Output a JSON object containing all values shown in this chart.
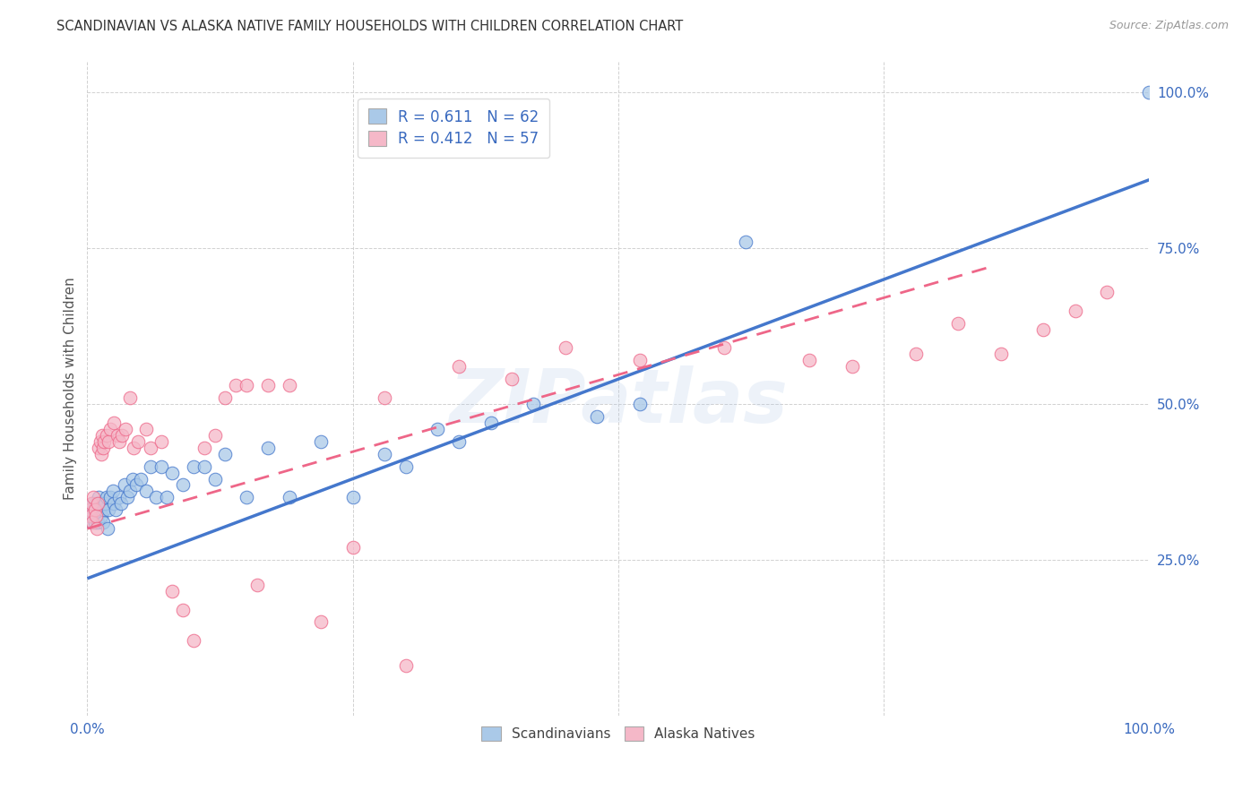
{
  "title": "SCANDINAVIAN VS ALASKA NATIVE FAMILY HOUSEHOLDS WITH CHILDREN CORRELATION CHART",
  "source": "Source: ZipAtlas.com",
  "ylabel": "Family Households with Children",
  "xlim": [
    0,
    1.0
  ],
  "ylim": [
    0,
    1.05
  ],
  "xtick_positions": [
    0.0,
    0.25,
    0.5,
    0.75,
    1.0
  ],
  "xtick_labels": [
    "0.0%",
    "",
    "",
    "",
    "100.0%"
  ],
  "ytick_positions": [
    0.25,
    0.5,
    0.75,
    1.0
  ],
  "ytick_labels": [
    "25.0%",
    "50.0%",
    "75.0%",
    "100.0%"
  ],
  "scandinavian_color": "#aac9e8",
  "alaska_color": "#f5b8c8",
  "line_blue": "#4477cc",
  "line_pink": "#ee6688",
  "watermark": "ZIPatlas",
  "R_scand": "0.611",
  "N_scand": "62",
  "R_alaska": "0.412",
  "N_alaska": "57",
  "scand_x": [
    0.002,
    0.003,
    0.004,
    0.005,
    0.005,
    0.006,
    0.007,
    0.007,
    0.008,
    0.008,
    0.009,
    0.009,
    0.01,
    0.01,
    0.011,
    0.012,
    0.013,
    0.014,
    0.015,
    0.016,
    0.017,
    0.018,
    0.019,
    0.02,
    0.022,
    0.024,
    0.025,
    0.027,
    0.03,
    0.032,
    0.035,
    0.038,
    0.04,
    0.043,
    0.046,
    0.05,
    0.055,
    0.06,
    0.065,
    0.07,
    0.075,
    0.08,
    0.09,
    0.1,
    0.11,
    0.12,
    0.13,
    0.15,
    0.17,
    0.19,
    0.22,
    0.25,
    0.28,
    0.3,
    0.33,
    0.35,
    0.38,
    0.42,
    0.48,
    0.52,
    0.62,
    1.0
  ],
  "scand_y": [
    0.32,
    0.33,
    0.31,
    0.34,
    0.32,
    0.33,
    0.31,
    0.33,
    0.32,
    0.34,
    0.32,
    0.33,
    0.31,
    0.34,
    0.35,
    0.33,
    0.32,
    0.34,
    0.31,
    0.33,
    0.34,
    0.35,
    0.3,
    0.33,
    0.35,
    0.36,
    0.34,
    0.33,
    0.35,
    0.34,
    0.37,
    0.35,
    0.36,
    0.38,
    0.37,
    0.38,
    0.36,
    0.4,
    0.35,
    0.4,
    0.35,
    0.39,
    0.37,
    0.4,
    0.4,
    0.38,
    0.42,
    0.35,
    0.43,
    0.35,
    0.44,
    0.35,
    0.42,
    0.4,
    0.46,
    0.44,
    0.47,
    0.5,
    0.48,
    0.5,
    0.76,
    1.0
  ],
  "alaska_x": [
    0.002,
    0.003,
    0.004,
    0.005,
    0.006,
    0.007,
    0.008,
    0.009,
    0.01,
    0.011,
    0.012,
    0.013,
    0.014,
    0.015,
    0.016,
    0.018,
    0.02,
    0.022,
    0.025,
    0.028,
    0.03,
    0.033,
    0.036,
    0.04,
    0.044,
    0.048,
    0.055,
    0.06,
    0.07,
    0.08,
    0.09,
    0.1,
    0.11,
    0.12,
    0.13,
    0.14,
    0.15,
    0.16,
    0.17,
    0.19,
    0.22,
    0.25,
    0.28,
    0.3,
    0.35,
    0.4,
    0.45,
    0.52,
    0.6,
    0.68,
    0.72,
    0.78,
    0.82,
    0.86,
    0.9,
    0.93,
    0.96
  ],
  "alaska_y": [
    0.33,
    0.32,
    0.34,
    0.31,
    0.35,
    0.33,
    0.32,
    0.3,
    0.34,
    0.43,
    0.44,
    0.42,
    0.45,
    0.43,
    0.44,
    0.45,
    0.44,
    0.46,
    0.47,
    0.45,
    0.44,
    0.45,
    0.46,
    0.51,
    0.43,
    0.44,
    0.46,
    0.43,
    0.44,
    0.2,
    0.17,
    0.12,
    0.43,
    0.45,
    0.51,
    0.53,
    0.53,
    0.21,
    0.53,
    0.53,
    0.15,
    0.27,
    0.51,
    0.08,
    0.56,
    0.54,
    0.59,
    0.57,
    0.59,
    0.57,
    0.56,
    0.58,
    0.63,
    0.58,
    0.62,
    0.65,
    0.68
  ],
  "blue_line_x0": 0.0,
  "blue_line_y0": 0.22,
  "blue_line_x1": 1.0,
  "blue_line_y1": 0.86,
  "pink_line_x0": 0.0,
  "pink_line_y0": 0.3,
  "pink_line_x1": 0.85,
  "pink_line_y1": 0.72
}
